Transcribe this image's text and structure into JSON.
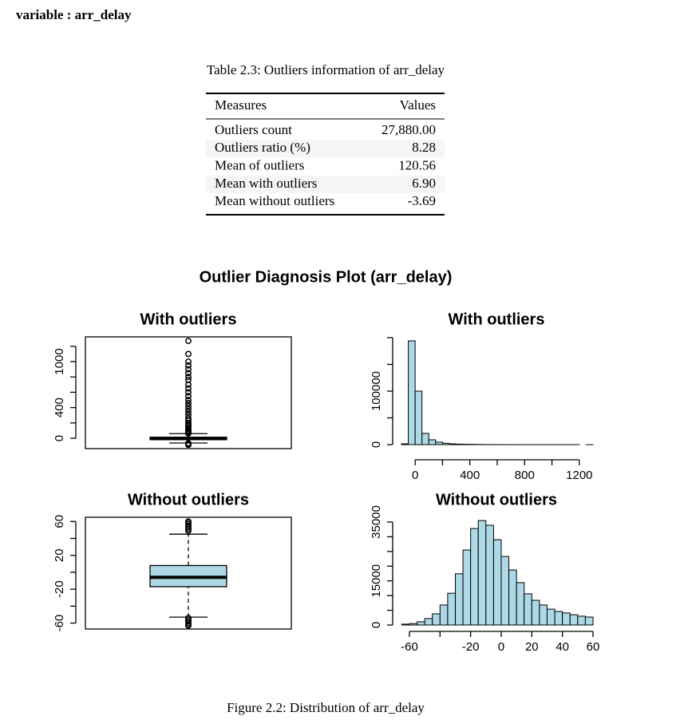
{
  "header": {
    "title": "variable : arr_delay"
  },
  "table": {
    "caption": "Table 2.3: Outliers information of arr_delay",
    "columns": [
      "Measures",
      "Values"
    ],
    "rows": [
      [
        "Outliers count",
        "27,880.00"
      ],
      [
        "Outliers ratio (%)",
        "8.28"
      ],
      [
        "Mean of outliers",
        "120.56"
      ],
      [
        "Mean with outliers",
        "6.90"
      ],
      [
        "Mean without outliers",
        "-3.69"
      ]
    ]
  },
  "figure": {
    "title": "Outlier Diagnosis Plot (arr_delay)",
    "caption": "Figure 2.2: Distribution of arr_delay"
  },
  "chart_data": [
    {
      "type": "box",
      "title": "With outliers",
      "color": "#add8e6",
      "stats": {
        "whisker_low": -62,
        "q1": -17,
        "median": -5,
        "q3": 14,
        "whisker_high": 60
      },
      "outliers": [
        -86,
        -80,
        -75,
        -70,
        -65,
        62,
        70,
        80,
        90,
        100,
        120,
        140,
        160,
        180,
        200,
        230,
        260,
        300,
        340,
        380,
        420,
        460,
        500,
        550,
        600,
        650,
        700,
        760,
        800,
        850,
        900,
        950,
        1000,
        1100,
        1270
      ],
      "ylim": [
        -135,
        1323
      ],
      "yticks": [
        0,
        400,
        1000
      ],
      "minor_yticks": [
        200,
        600,
        800,
        1200
      ]
    },
    {
      "type": "histogram",
      "title": "With outliers",
      "color": "#add8e6",
      "bins": [
        -100,
        -50,
        0,
        50,
        100,
        150,
        200,
        250,
        300,
        350,
        400,
        450,
        500,
        550,
        600,
        650,
        700,
        750,
        800,
        850,
        900,
        950,
        1000,
        1050,
        1100,
        1150,
        1200,
        1250,
        1300
      ],
      "counts": [
        1500,
        194000,
        100000,
        21000,
        9000,
        4500,
        2500,
        1500,
        900,
        600,
        400,
        250,
        150,
        100,
        60,
        40,
        25,
        15,
        10,
        6,
        4,
        3,
        2,
        1,
        1,
        1,
        0,
        1
      ],
      "xlim": [
        -100,
        1300
      ],
      "xticks": [
        0,
        400,
        800,
        1200
      ],
      "minor_xticks": [
        200,
        600,
        1000
      ],
      "ylim": [
        0,
        200000
      ],
      "yticks": [
        0,
        100000
      ],
      "minor_yticks": [
        50000,
        150000,
        200000
      ]
    },
    {
      "type": "box",
      "title": "Without outliers",
      "color": "#add8e6",
      "stats": {
        "whisker_low": -53,
        "q1": -17,
        "median": -6,
        "q3": 8,
        "whisker_high": 45
      },
      "outliers": [
        -63,
        -62,
        -60,
        -58,
        -56,
        -54,
        49,
        51,
        53,
        55,
        57,
        59,
        60
      ],
      "ylim": [
        -67,
        65
      ],
      "yticks": [
        -60,
        -20,
        20,
        60
      ],
      "minor_yticks": [
        -40,
        0,
        40
      ]
    },
    {
      "type": "histogram",
      "title": "Without outliers",
      "color": "#add8e6",
      "bins": [
        -65,
        -60,
        -55,
        -50,
        -45,
        -40,
        -35,
        -30,
        -25,
        -20,
        -15,
        -10,
        -5,
        0,
        5,
        10,
        15,
        20,
        25,
        30,
        35,
        40,
        45,
        50,
        55,
        60
      ],
      "counts": [
        300,
        500,
        1100,
        2200,
        3800,
        6800,
        10800,
        17400,
        25500,
        32800,
        35500,
        33900,
        29000,
        23300,
        18700,
        14400,
        10600,
        8400,
        6800,
        5400,
        4600,
        4100,
        3500,
        3000,
        2700
      ],
      "xlim": [
        -65,
        60
      ],
      "xticks": [
        -60,
        -20,
        0,
        20,
        40,
        60
      ],
      "minor_xticks": [
        -40
      ],
      "ylim": [
        0,
        35000
      ],
      "yticks": [
        0,
        15000,
        35000
      ],
      "minor_yticks": [
        5000,
        10000,
        20000,
        25000,
        30000
      ]
    }
  ]
}
